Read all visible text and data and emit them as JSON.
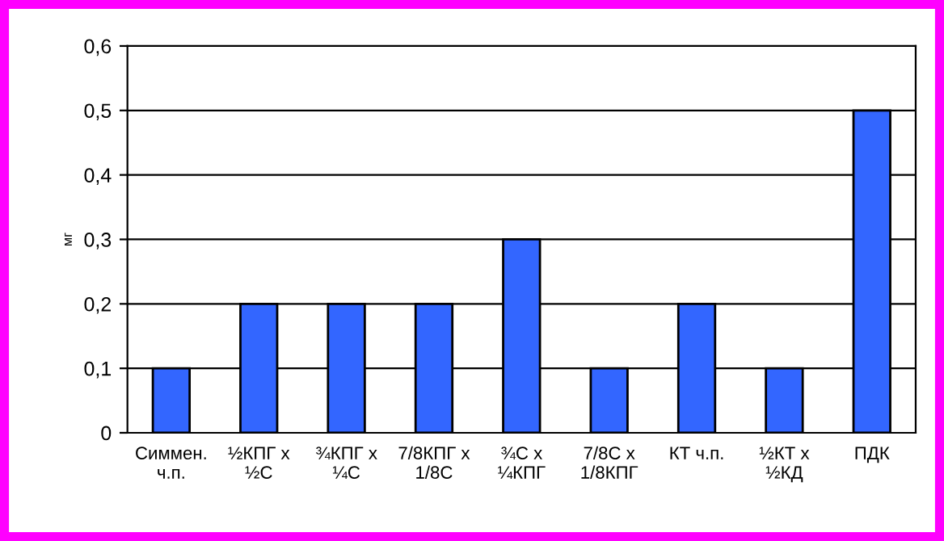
{
  "chart_data": {
    "type": "bar",
    "ylabel": "мг",
    "categories": [
      "Симмен.\nч.п.",
      "½КПГ х\n½С",
      "¾КПГ х\n¼С",
      "7/8КПГ х\n1/8С",
      "¾С х\n¼КПГ",
      "7/8С х\n1/8КПГ",
      "КТ ч.п.",
      "½КТ х\n½КД",
      "ПДК"
    ],
    "values": [
      0.1,
      0.2,
      0.2,
      0.2,
      0.3,
      0.1,
      0.2,
      0.1,
      0.5
    ],
    "color": "#3366ff",
    "ylim": [
      0,
      0.6
    ],
    "yticks": [
      0,
      {
        "value": 0.1,
        "label": "0,1"
      },
      {
        "value": 0.2,
        "label": "0,2"
      },
      {
        "value": 0.3,
        "label": "0,3"
      },
      {
        "value": 0.4,
        "label": "0,4"
      },
      {
        "value": 0.5,
        "label": "0,5"
      },
      {
        "value": 0.6,
        "label": "0,6"
      }
    ],
    "grid": "y",
    "legend": false
  }
}
